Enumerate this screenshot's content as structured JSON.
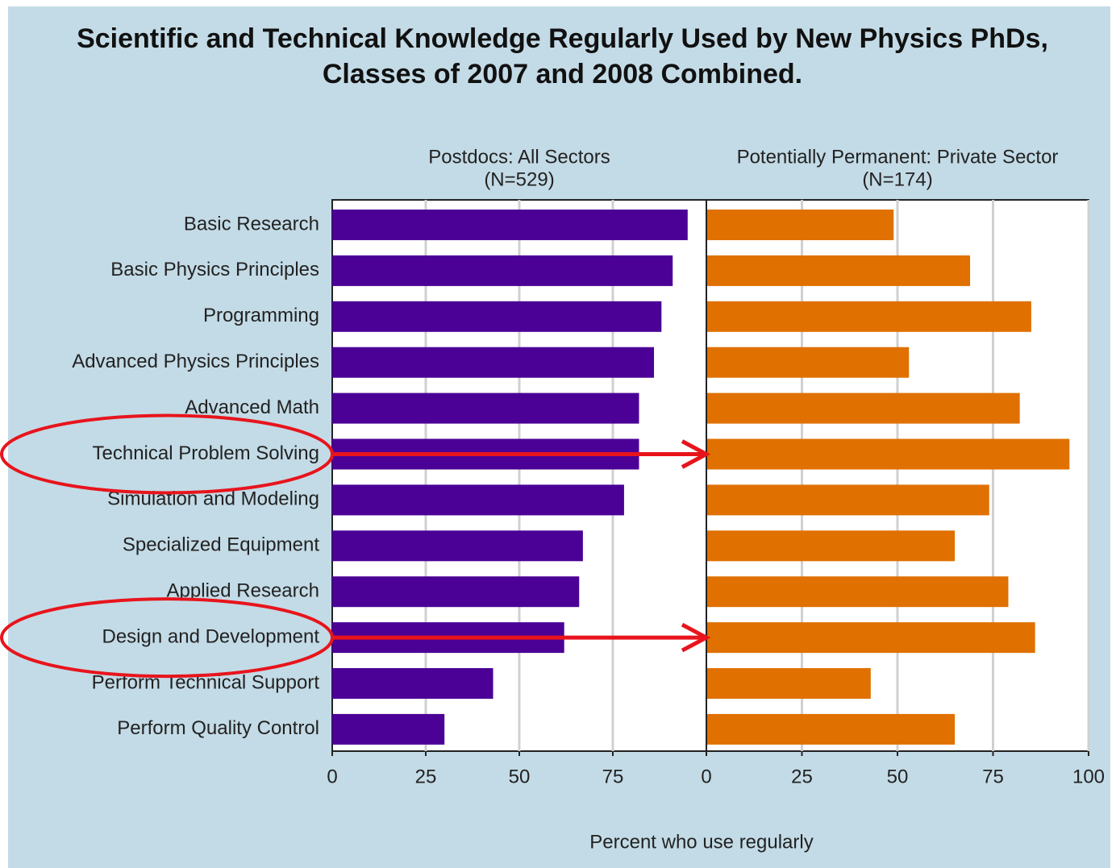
{
  "chart_data": {
    "type": "bar",
    "orientation": "horizontal",
    "title": "Scientific and Technical Knowledge Regularly Used by New Physics PhDs, Classes of 2007 and 2008 Combined.",
    "xlabel": "Percent who use regularly",
    "categories": [
      "Basic Research",
      "Basic Physics Principles",
      "Programming",
      "Advanced Physics Principles",
      "Advanced Math",
      "Technical Problem Solving",
      "Simulation and Modeling",
      "Specialized Equipment",
      "Applied Research",
      "Design and Development",
      "Perform Technical Support",
      "Perform Quality Control"
    ],
    "series": [
      {
        "name": "Postdocs: All Sectors",
        "n_label": "(N=529)",
        "color": "#4b0096",
        "values": [
          95,
          91,
          88,
          86,
          82,
          82,
          78,
          67,
          66,
          62,
          43,
          30
        ],
        "xlim": [
          0,
          100
        ],
        "xticks": [
          0,
          25,
          50,
          75
        ]
      },
      {
        "name": "Potentially Permanent: Private Sector",
        "n_label": "(N=174)",
        "color": "#e07000",
        "values": [
          49,
          69,
          85,
          53,
          82,
          95,
          74,
          65,
          79,
          86,
          43,
          65
        ],
        "xlim": [
          0,
          100
        ],
        "xticks": [
          0,
          25,
          50,
          75,
          100
        ]
      }
    ],
    "grid": true
  }
}
